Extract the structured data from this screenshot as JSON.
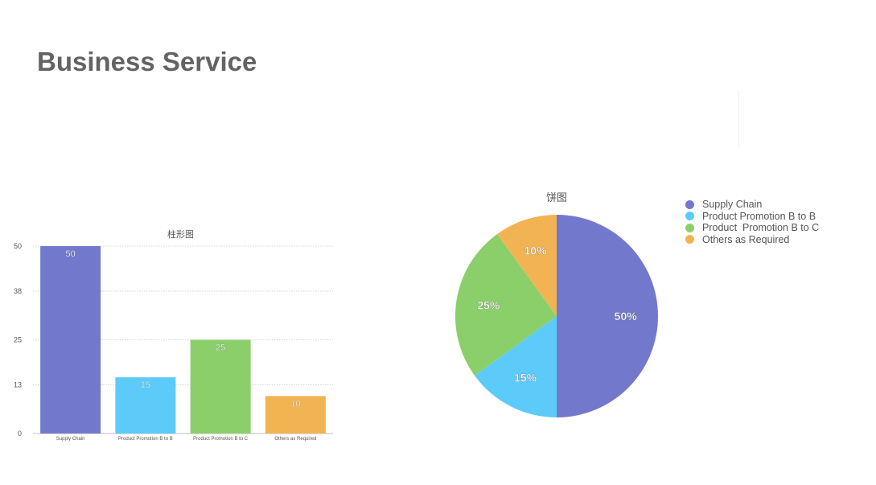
{
  "page": {
    "title": "Business Service"
  },
  "chart_data": [
    {
      "type": "bar",
      "title": "柱形图",
      "categories": [
        "Supply Chain",
        "Product Promotion B to B",
        "Product  Promotion B to C",
        "Others as Required"
      ],
      "values": [
        50,
        15,
        25,
        10
      ],
      "data_labels": [
        "50",
        "15",
        "25",
        "10"
      ],
      "colors": [
        "#7279cc",
        "#5ccbfa",
        "#8bcf6a",
        "#f2b452"
      ],
      "yticks": [
        0,
        13,
        25,
        38,
        50
      ],
      "ylim": [
        0,
        50
      ],
      "grid": true,
      "xlabel": "",
      "ylabel": ""
    },
    {
      "type": "pie",
      "title": "饼图",
      "categories": [
        "Supply Chain",
        "Product Promotion B to B",
        "Product  Promotion B to C",
        "Others as Required"
      ],
      "values": [
        50,
        15,
        25,
        10
      ],
      "data_labels": [
        "50%",
        "15%",
        "25%",
        "10%"
      ],
      "colors": [
        "#7279cc",
        "#5ccbfa",
        "#8bcf6a",
        "#f2b452"
      ],
      "legend": {
        "placement": "right",
        "entries": [
          "Supply Chain",
          "Product Promotion B to B",
          "Product  Promotion B to C",
          "Others as Required"
        ]
      }
    }
  ]
}
